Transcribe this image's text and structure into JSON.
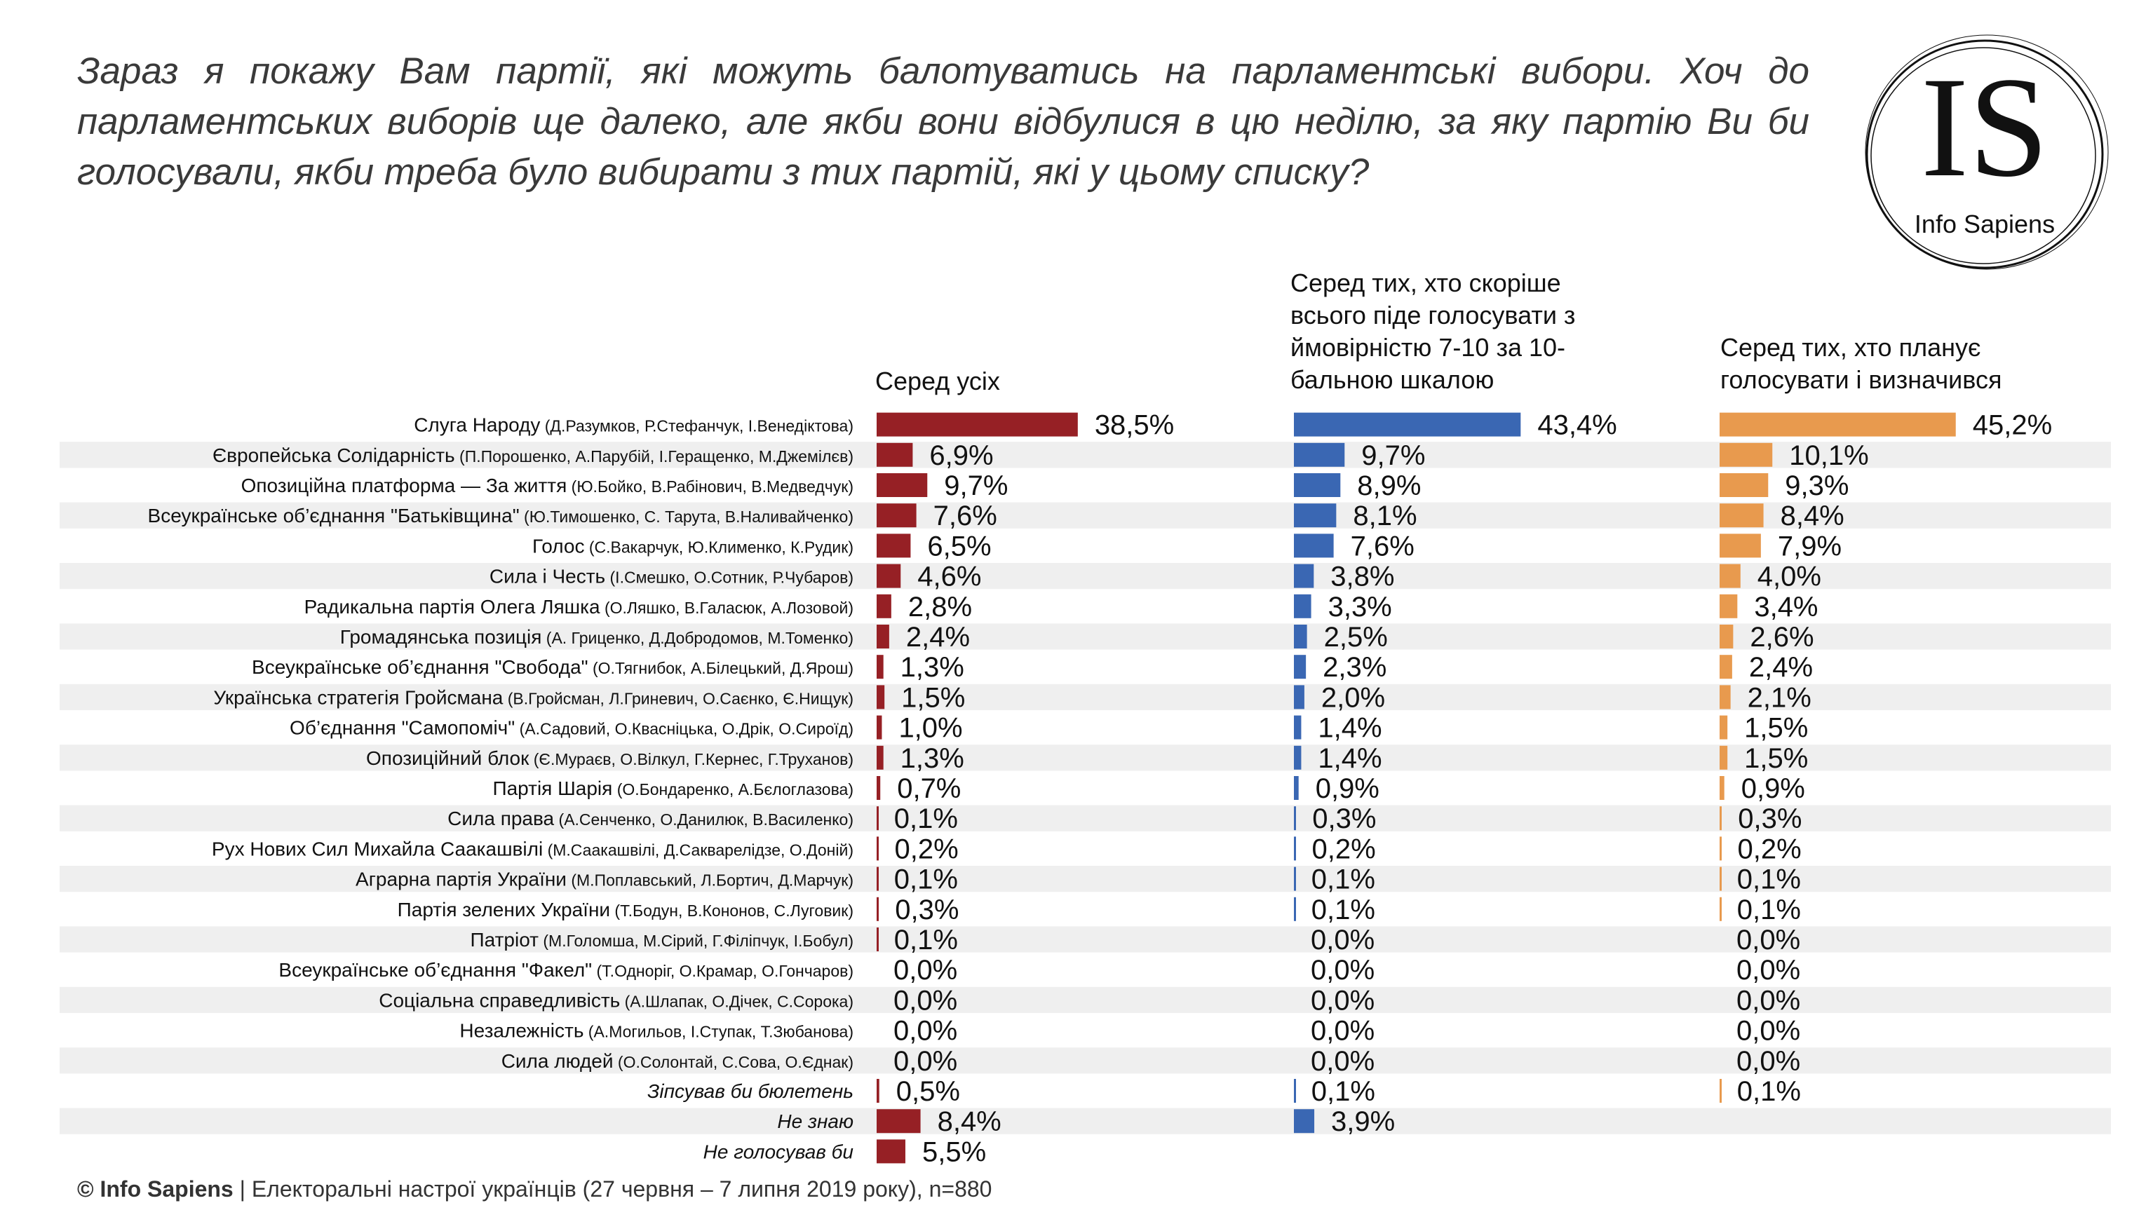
{
  "question": "Зараз я покажу Вам партії, які можуть балотуватись на парламентські вибори. Хоч до парламентських виборів ще далеко, але якби вони відбулися в цю неділю, за яку партію Ви би голосували, якби треба було вибирати з тих партій, які у цьому списку?",
  "logo": {
    "mark": "IS",
    "name": "Info Sapiens"
  },
  "columns": {
    "all": "Серед усіх",
    "likely": "Серед тих, хто скоріше всього піде  голосувати з ймовірністю 7-10 за 10-бальною шкалою",
    "decided": "Серед тих, хто планує голосувати і визначився"
  },
  "source": {
    "brand": "© Info Sapiens",
    "text": " | Електоральні настрої українців (27 червня – 7 липня 2019 року), n=880"
  },
  "chart_data": {
    "type": "bar",
    "orientation": "horizontal",
    "unit": "%",
    "colors": {
      "Серед усіх": "#962025",
      "Серед тих, хто скоріше всього піде  голосувати з ймовірністю 7-10 за 10-бальною шкалою": "#3a67b3",
      "Серед тих, хто планує голосувати і визначився": "#e89a4e",
      "row_band": "#efefef"
    },
    "categories": [
      {
        "name": "Слуга Народу",
        "detail": "(Д.Разумков, Р.Стефанчук, І.Венедіктова)"
      },
      {
        "name": "Європейська Солідарність",
        "detail": "(П.Порошенко, А.Парубій, І.Геращенко, М.Джемілєв)"
      },
      {
        "name": "Опозиційна платформа — За життя",
        "detail": "(Ю.Бойко, В.Рабінович, В.Медведчук)"
      },
      {
        "name": "Всеукраїнське об’єднання \"Батьківщина\"",
        "detail": "(Ю.Тимошенко, С. Тарута, В.Наливайченко)"
      },
      {
        "name": "Голос",
        "detail": "(С.Вакарчук, Ю.Клименко, К.Рудик)"
      },
      {
        "name": "Сила і Честь",
        "detail": "(І.Смешко, О.Сотник, Р.Чубаров)"
      },
      {
        "name": "Радикальна партія Олега Ляшка",
        "detail": "(О.Ляшко, В.Галасюк, А.Лозовой)"
      },
      {
        "name": "Громадянська позиція",
        "detail": "(А. Гриценко, Д.Добродомов, М.Томенко)"
      },
      {
        "name": "Всеукраїнське об’єднання \"Свобода\"",
        "detail": "(О.Тягнибок, А.Білецький, Д.Ярош)"
      },
      {
        "name": "Українська стратегія Гройсмана",
        "detail": "(В.Гройсман, Л.Гриневич, О.Саєнко, Є.Нищук)"
      },
      {
        "name": "Об’єднання \"Самопоміч\"",
        "detail": "(А.Садовий, О.Квасніцька, О.Дрік, О.Сироїд)"
      },
      {
        "name": "Опозиційний блок",
        "detail": "(Є.Мураєв, О.Вілкул, Г.Кернес, Г.Труханов)"
      },
      {
        "name": "Партія Шарія",
        "detail": "(О.Бондаренко, А.Бєлоглазова)"
      },
      {
        "name": "Сила права",
        "detail": "(А.Сенченко, О.Данилюк, В.Василенко)"
      },
      {
        "name": "Рух Нових Сил Михайла Саакашвілі",
        "detail": "(М.Саакашвілі, Д.Сакварелідзе, О.Доній)"
      },
      {
        "name": "Аграрна партія України",
        "detail": "(М.Поплавський, Л.Бортич, Д.Марчук)"
      },
      {
        "name": "Партія зелених України",
        "detail": "(Т.Бодун, В.Кононов, С.Луговик)"
      },
      {
        "name": "Патріот",
        "detail": "(М.Голомша, М.Сірий, Г.Філіпчук, І.Бобул)"
      },
      {
        "name": "Всеукраїнське об’єднання \"Факел\"",
        "detail": "(Т.Одноріг, О.Крамар, О.Гончаров)"
      },
      {
        "name": "Соціальна справедливість",
        "detail": "(А.Шлапак, О.Дічек, С.Сорока)"
      },
      {
        "name": "Незалежність",
        "detail": "(А.Могильов, І.Ступак, Т.Зюбанова)"
      },
      {
        "name": "Сила людей",
        "detail": "(О.Солонтай, С.Сова, О.Єднак)"
      },
      {
        "name": "Зіпсував би бюлетень",
        "detail": "",
        "italic": true
      },
      {
        "name": "Не знаю",
        "detail": "",
        "italic": true
      },
      {
        "name": "Не голосував би",
        "detail": "",
        "italic": true
      }
    ],
    "series": [
      {
        "name": "Серед усіх",
        "values": [
          38.5,
          6.9,
          9.7,
          7.6,
          6.5,
          4.6,
          2.8,
          2.4,
          1.3,
          1.5,
          1.0,
          1.3,
          0.7,
          0.1,
          0.2,
          0.1,
          0.3,
          0.1,
          0.0,
          0.0,
          0.0,
          0.0,
          0.5,
          8.4,
          5.5
        ],
        "labels": [
          "38,5%",
          "6,9%",
          "9,7%",
          "7,6%",
          "6,5%",
          "4,6%",
          "2,8%",
          "2,4%",
          "1,3%",
          "1,5%",
          "1,0%",
          "1,3%",
          "0,7%",
          "0,1%",
          "0,2%",
          "0,1%",
          "0,3%",
          "0,1%",
          "0,0%",
          "0,0%",
          "0,0%",
          "0,0%",
          "0,5%",
          "8,4%",
          "5,5%"
        ]
      },
      {
        "name": "Серед тих, хто скоріше всього піде  голосувати з ймовірністю 7-10 за 10-бальною шкалою",
        "values": [
          43.4,
          9.7,
          8.9,
          8.1,
          7.6,
          3.8,
          3.3,
          2.5,
          2.3,
          2.0,
          1.4,
          1.4,
          0.9,
          0.3,
          0.2,
          0.1,
          0.1,
          0.0,
          0.0,
          0.0,
          0.0,
          0.0,
          0.1,
          3.9,
          null
        ],
        "labels": [
          "43,4%",
          "9,7%",
          "8,9%",
          "8,1%",
          "7,6%",
          "3,8%",
          "3,3%",
          "2,5%",
          "2,3%",
          "2,0%",
          "1,4%",
          "1,4%",
          "0,9%",
          "0,3%",
          "0,2%",
          "0,1%",
          "0,1%",
          "0,0%",
          "0,0%",
          "0,0%",
          "0,0%",
          "0,0%",
          "0,1%",
          "3,9%",
          ""
        ]
      },
      {
        "name": "Серед тих, хто планує голосувати і визначився",
        "values": [
          45.2,
          10.1,
          9.3,
          8.4,
          7.9,
          4.0,
          3.4,
          2.6,
          2.4,
          2.1,
          1.5,
          1.5,
          0.9,
          0.3,
          0.2,
          0.1,
          0.1,
          0.0,
          0.0,
          0.0,
          0.0,
          0.0,
          0.1,
          null,
          null
        ],
        "labels": [
          "45,2%",
          "10,1%",
          "9,3%",
          "8,4%",
          "7,9%",
          "4,0%",
          "3,4%",
          "2,6%",
          "2,4%",
          "2,1%",
          "1,5%",
          "1,5%",
          "0,9%",
          "0,3%",
          "0,2%",
          "0,1%",
          "0,1%",
          "0,0%",
          "0,0%",
          "0,0%",
          "0,0%",
          "0,0%",
          "0,1%",
          "",
          ""
        ]
      }
    ]
  }
}
